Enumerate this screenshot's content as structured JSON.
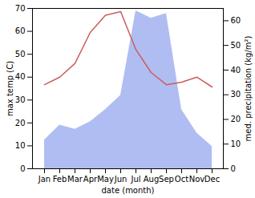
{
  "chart_data": {
    "type": "line",
    "xlabel": "date (month)",
    "ylabel": "max temp (C)",
    "y2label": "med. precipitation (kg/m²)",
    "categories": [
      "Jan",
      "Feb",
      "Mar",
      "Apr",
      "May",
      "Jun",
      "Jul",
      "Aug",
      "Sep",
      "Oct",
      "Nov",
      "Dec"
    ],
    "series": [
      {
        "type": "area",
        "axis": "y2",
        "color": "#b0bdf2",
        "values": [
          11.6,
          17.7,
          16,
          19,
          24,
          29.7,
          64,
          61,
          63,
          24,
          14.5,
          9
        ]
      },
      {
        "type": "line",
        "axis": "y",
        "color": "#cd5c5c",
        "values": [
          36.7,
          40,
          46,
          59.5,
          67,
          68.6,
          52,
          42,
          36.7,
          37.8,
          40,
          35.7
        ]
      }
    ],
    "ylim": [
      0,
      70
    ],
    "yticks": [
      0,
      10,
      20,
      30,
      40,
      50,
      60,
      70
    ],
    "y2lim": [
      0,
      65
    ],
    "y2ticks": [
      0,
      10,
      20,
      30,
      40,
      50,
      60
    ],
    "grid": false
  }
}
